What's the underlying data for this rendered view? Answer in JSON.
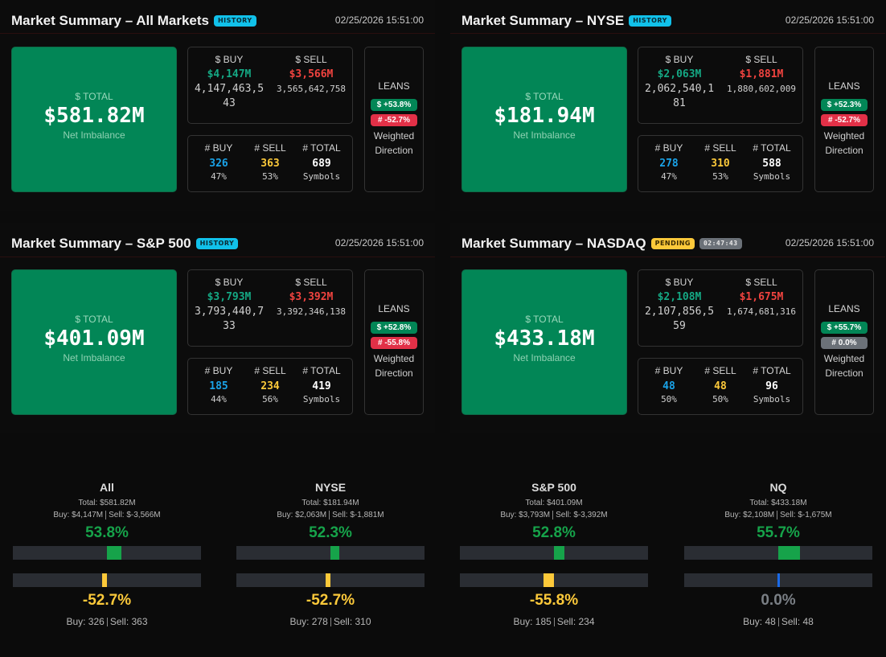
{
  "panels": [
    {
      "title": "Market Summary – All Markets",
      "badges": [
        {
          "label": "HISTORY",
          "kind": "history"
        }
      ],
      "timestamp": "02/25/2026 15:51:00",
      "total": {
        "label": "$ TOTAL",
        "value": "$581.82M",
        "sub": "Net Imbalance"
      },
      "dollar": {
        "buy_label": "$ BUY",
        "buy": "$4,147M",
        "buy_raw": "4,147,463,543",
        "sell_label": "$ SELL",
        "sell": "$3,566M",
        "sell_raw": "3,565,642,758"
      },
      "count": {
        "buy_label": "# BUY",
        "buy": "326",
        "buy_pct": "47%",
        "sell_label": "# SELL",
        "sell": "363",
        "sell_pct": "53%",
        "total_label": "# TOTAL",
        "total": "689",
        "total_sub": "Symbols"
      },
      "leans": {
        "label": "LEANS",
        "dollar_pill": "$ +53.8%",
        "count_pill": "# -52.7%",
        "count_kind": "red",
        "sub1": "Weighted",
        "sub2": "Direction"
      }
    },
    {
      "title": "Market Summary – NYSE",
      "badges": [
        {
          "label": "HISTORY",
          "kind": "history"
        }
      ],
      "timestamp": "02/25/2026 15:51:00",
      "total": {
        "label": "$ TOTAL",
        "value": "$181.94M",
        "sub": "Net Imbalance"
      },
      "dollar": {
        "buy_label": "$ BUY",
        "buy": "$2,063M",
        "buy_raw": "2,062,540,181",
        "sell_label": "$ SELL",
        "sell": "$1,881M",
        "sell_raw": "1,880,602,009"
      },
      "count": {
        "buy_label": "# BUY",
        "buy": "278",
        "buy_pct": "47%",
        "sell_label": "# SELL",
        "sell": "310",
        "sell_pct": "53%",
        "total_label": "# TOTAL",
        "total": "588",
        "total_sub": "Symbols"
      },
      "leans": {
        "label": "LEANS",
        "dollar_pill": "$ +52.3%",
        "count_pill": "# -52.7%",
        "count_kind": "red",
        "sub1": "Weighted",
        "sub2": "Direction"
      }
    },
    {
      "title": "Market Summary – S&P 500",
      "badges": [
        {
          "label": "HISTORY",
          "kind": "history"
        }
      ],
      "timestamp": "02/25/2026 15:51:00",
      "total": {
        "label": "$ TOTAL",
        "value": "$401.09M",
        "sub": "Net Imbalance"
      },
      "dollar": {
        "buy_label": "$ BUY",
        "buy": "$3,793M",
        "buy_raw": "3,793,440,733",
        "sell_label": "$ SELL",
        "sell": "$3,392M",
        "sell_raw": "3,392,346,138"
      },
      "count": {
        "buy_label": "# BUY",
        "buy": "185",
        "buy_pct": "44%",
        "sell_label": "# SELL",
        "sell": "234",
        "sell_pct": "56%",
        "total_label": "# TOTAL",
        "total": "419",
        "total_sub": "Symbols"
      },
      "leans": {
        "label": "LEANS",
        "dollar_pill": "$ +52.8%",
        "count_pill": "# -55.8%",
        "count_kind": "red",
        "sub1": "Weighted",
        "sub2": "Direction"
      }
    },
    {
      "title": "Market Summary – NASDAQ",
      "badges": [
        {
          "label": "PENDING",
          "kind": "pending"
        },
        {
          "label": "02:47:43",
          "kind": "timer"
        }
      ],
      "timestamp": "02/25/2026 15:51:00",
      "total": {
        "label": "$ TOTAL",
        "value": "$433.18M",
        "sub": "Net Imbalance"
      },
      "dollar": {
        "buy_label": "$ BUY",
        "buy": "$2,108M",
        "buy_raw": "2,107,856,559",
        "sell_label": "$ SELL",
        "sell": "$1,675M",
        "sell_raw": "1,674,681,316"
      },
      "count": {
        "buy_label": "# BUY",
        "buy": "48",
        "buy_pct": "50%",
        "sell_label": "# SELL",
        "sell": "48",
        "sell_pct": "50%",
        "total_label": "# TOTAL",
        "total": "96",
        "total_sub": "Symbols"
      },
      "leans": {
        "label": "LEANS",
        "dollar_pill": "$ +55.7%",
        "count_pill": "# 0.0%",
        "count_kind": "gray",
        "sub1": "Weighted",
        "sub2": "Direction"
      }
    }
  ],
  "gauges": [
    {
      "name": "All",
      "total": "Total: $581.82M",
      "buy": "Buy: $4,147M",
      "sell": "Sell: $-3,566M",
      "dollar_pct_text": "53.8%",
      "dollar_pct": 53.8,
      "count_pct_text": "-52.7%",
      "count_pct": -52.7,
      "count_buy": "Buy: 326",
      "count_sell": "Sell: 363"
    },
    {
      "name": "NYSE",
      "total": "Total: $181.94M",
      "buy": "Buy: $2,063M",
      "sell": "Sell: $-1,881M",
      "dollar_pct_text": "52.3%",
      "dollar_pct": 52.3,
      "count_pct_text": "-52.7%",
      "count_pct": -52.7,
      "count_buy": "Buy: 278",
      "count_sell": "Sell: 310"
    },
    {
      "name": "S&P 500",
      "total": "Total: $401.09M",
      "buy": "Buy: $3,793M",
      "sell": "Sell: $-3,392M",
      "dollar_pct_text": "52.8%",
      "dollar_pct": 52.8,
      "count_pct_text": "-55.8%",
      "count_pct": -55.8,
      "count_buy": "Buy: 185",
      "count_sell": "Sell: 234"
    },
    {
      "name": "NQ",
      "total": "Total: $433.18M",
      "buy": "Buy: $2,108M",
      "sell": "Sell: $-1,675M",
      "dollar_pct_text": "55.7%",
      "dollar_pct": 55.7,
      "count_pct_text": "0.0%",
      "count_pct": 0.0,
      "count_buy": "Buy: 48",
      "count_sell": "Sell: 48"
    }
  ],
  "colors": {
    "buy_green": "#16a34a",
    "sell_yellow": "#fcc93a",
    "neutral_blue": "#1a6ae8",
    "total_bg": "#028656"
  }
}
